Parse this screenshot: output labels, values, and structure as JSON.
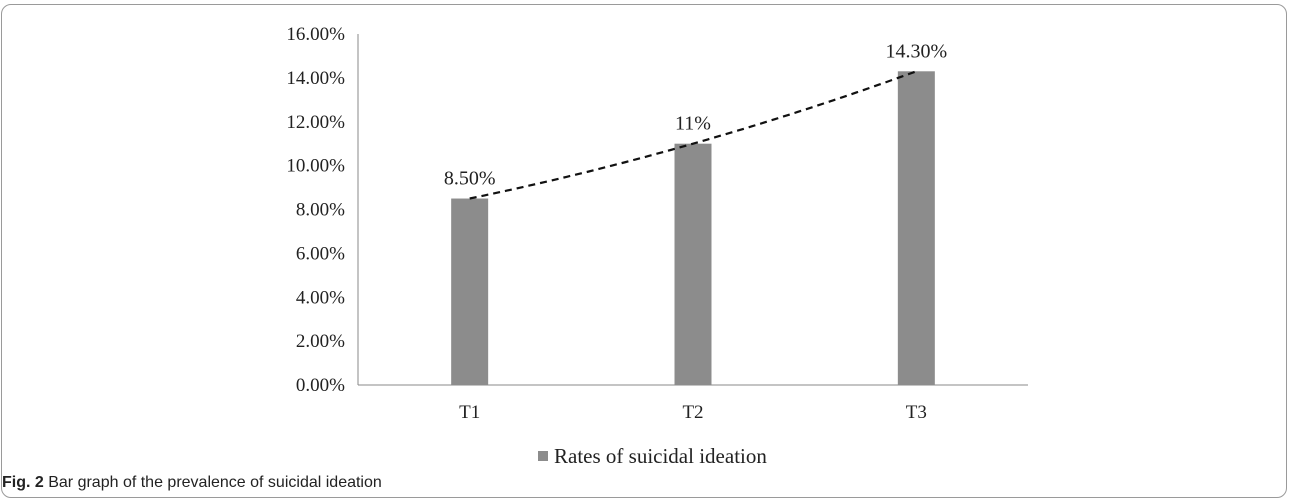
{
  "chart_data": {
    "type": "bar",
    "categories": [
      "T1",
      "T2",
      "T3"
    ],
    "series": [
      {
        "name": "Rates of suicidal ideation",
        "values": [
          8.5,
          11,
          14.3
        ]
      }
    ],
    "data_labels": [
      "8.50%",
      "11%",
      "14.30%"
    ],
    "y_ticks": [
      "0.00%",
      "2.00%",
      "4.00%",
      "6.00%",
      "8.00%",
      "10.00%",
      "12.00%",
      "14.00%",
      "16.00%"
    ],
    "ylim": [
      0,
      16
    ],
    "xlabel": "",
    "ylabel": "",
    "grid": false,
    "legend_position": "bottom",
    "trendline": "dashed",
    "bar_color": "#8c8c8c"
  },
  "caption": {
    "label": "Fig. 2",
    "text": "Bar graph of the prevalence of suicidal ideation"
  }
}
